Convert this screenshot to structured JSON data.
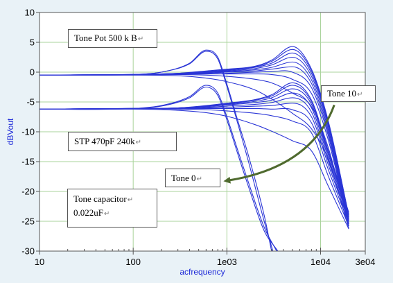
{
  "chart_data": {
    "type": "line",
    "xlabel": "acfrequency",
    "ylabel": "dBVout",
    "xscale": "log",
    "xlim": [
      10,
      30000
    ],
    "ylim": [
      -30,
      10
    ],
    "xticks": [
      "10",
      "100",
      "1e03",
      "1e04",
      "3e04"
    ],
    "yticks": [
      "10",
      "5",
      "0",
      "-5",
      "-10",
      "-15",
      "-20",
      "-25",
      "-30"
    ],
    "grid": true,
    "line_color": "#2a35d6",
    "series": [
      {
        "group": "upper",
        "x": [
          10,
          100,
          300,
          600,
          1000,
          2000,
          3000,
          5000,
          8000,
          12000,
          20000
        ],
        "y": [
          -0.5,
          -0.4,
          -0.2,
          0.2,
          0.5,
          1.0,
          2.0,
          4.3,
          0.5,
          -8,
          -24
        ]
      },
      {
        "group": "upper",
        "x": [
          10,
          100,
          300,
          600,
          1000,
          2000,
          3000,
          5000,
          8000,
          12000,
          20000
        ],
        "y": [
          -0.5,
          -0.4,
          -0.2,
          0.1,
          0.4,
          0.9,
          1.8,
          3.8,
          0.2,
          -8.3,
          -24
        ]
      },
      {
        "group": "upper",
        "x": [
          10,
          100,
          300,
          600,
          1000,
          2000,
          3000,
          5000,
          8000,
          12000,
          20000
        ],
        "y": [
          -0.5,
          -0.4,
          -0.2,
          0.0,
          0.3,
          0.8,
          1.5,
          3.2,
          -0.2,
          -8.6,
          -24.3
        ]
      },
      {
        "group": "upper",
        "x": [
          10,
          100,
          300,
          600,
          1000,
          2000,
          3000,
          5000,
          8000,
          12000,
          20000
        ],
        "y": [
          -0.5,
          -0.4,
          -0.3,
          -0.1,
          0.2,
          0.6,
          1.2,
          2.5,
          -0.7,
          -9,
          -24.5
        ]
      },
      {
        "group": "upper",
        "x": [
          10,
          100,
          300,
          600,
          1000,
          2000,
          3000,
          5000,
          8000,
          12000,
          20000
        ],
        "y": [
          -0.5,
          -0.4,
          -0.3,
          -0.1,
          0.1,
          0.4,
          0.8,
          1.7,
          -1.3,
          -9.5,
          -24.8
        ]
      },
      {
        "group": "upper",
        "x": [
          10,
          100,
          300,
          600,
          1000,
          2000,
          3000,
          5000,
          8000,
          12000,
          20000
        ],
        "y": [
          -0.5,
          -0.4,
          -0.3,
          -0.2,
          0.0,
          0.2,
          0.5,
          0.9,
          -1.9,
          -10,
          -25
        ]
      },
      {
        "group": "upper",
        "x": [
          10,
          100,
          300,
          600,
          1000,
          2000,
          3000,
          5000,
          8000,
          12000,
          20000
        ],
        "y": [
          -0.5,
          -0.4,
          -0.3,
          -0.3,
          -0.2,
          0.0,
          0.1,
          0.0,
          -2.6,
          -10.5,
          -25.3
        ]
      },
      {
        "group": "upper",
        "x": [
          10,
          100,
          300,
          600,
          1000,
          2000,
          3000,
          5000,
          8000,
          12000,
          20000
        ],
        "y": [
          -0.5,
          -0.4,
          -0.3,
          -0.3,
          -0.3,
          -0.3,
          -0.4,
          -1.2,
          -3.6,
          -11.2,
          -25.5
        ]
      },
      {
        "group": "upper",
        "x": [
          10,
          100,
          300,
          600,
          1000,
          2000,
          3000,
          5000,
          8000,
          12000,
          20000
        ],
        "y": [
          -0.5,
          -0.4,
          -0.4,
          -0.5,
          -0.7,
          -1.2,
          -1.8,
          -3.5,
          -5.8,
          -12.5,
          -25.8
        ]
      },
      {
        "group": "upper",
        "x": [
          10,
          100,
          300,
          600,
          1000,
          2000,
          3000,
          5000,
          8000,
          12000,
          20000
        ],
        "y": [
          -0.5,
          -0.5,
          -0.6,
          -1.0,
          -1.6,
          -3.0,
          -4.5,
          -6.9,
          -9.5,
          -14.5,
          -26.2
        ]
      },
      {
        "group": "upper-peak",
        "x": [
          10,
          100,
          200,
          400,
          600,
          800,
          1000,
          1300,
          1700,
          2500,
          3000
        ],
        "y": [
          -0.5,
          -0.4,
          0.0,
          1.5,
          3.7,
          2.5,
          -2,
          -8,
          -14,
          -24,
          -30
        ]
      },
      {
        "group": "upper-peak",
        "x": [
          10,
          100,
          200,
          400,
          600,
          800,
          1000,
          1300,
          1700,
          2500,
          3100
        ],
        "y": [
          -0.5,
          -0.4,
          0.0,
          1.4,
          3.5,
          2.2,
          -2.4,
          -8.5,
          -15,
          -25,
          -30
        ]
      },
      {
        "group": "lower",
        "x": [
          10,
          100,
          300,
          600,
          1000,
          2000,
          3000,
          5000,
          8000,
          12000,
          20000
        ],
        "y": [
          -6.2,
          -6.1,
          -6.0,
          -5.6,
          -5.2,
          -4.6,
          -3.8,
          -1.8,
          -4.7,
          -13,
          -23.5
        ]
      },
      {
        "group": "lower",
        "x": [
          10,
          100,
          300,
          600,
          1000,
          2000,
          3000,
          5000,
          8000,
          12000,
          20000
        ],
        "y": [
          -6.2,
          -6.1,
          -6.0,
          -5.7,
          -5.3,
          -4.7,
          -4.0,
          -2.2,
          -5.0,
          -13.3,
          -23.7
        ]
      },
      {
        "group": "lower",
        "x": [
          10,
          100,
          300,
          600,
          1000,
          2000,
          3000,
          5000,
          8000,
          12000,
          20000
        ],
        "y": [
          -6.2,
          -6.1,
          -6.0,
          -5.7,
          -5.4,
          -4.9,
          -4.3,
          -2.8,
          -5.4,
          -13.7,
          -24
        ]
      },
      {
        "group": "lower",
        "x": [
          10,
          100,
          300,
          600,
          1000,
          2000,
          3000,
          5000,
          8000,
          12000,
          20000
        ],
        "y": [
          -6.2,
          -6.1,
          -6.0,
          -5.8,
          -5.5,
          -5.1,
          -4.7,
          -3.5,
          -6.0,
          -14.2,
          -24.3
        ]
      },
      {
        "group": "lower",
        "x": [
          10,
          100,
          300,
          600,
          1000,
          2000,
          3000,
          5000,
          8000,
          12000,
          20000
        ],
        "y": [
          -6.2,
          -6.1,
          -6.1,
          -5.9,
          -5.7,
          -5.4,
          -5.1,
          -4.3,
          -6.7,
          -14.8,
          -24.6
        ]
      },
      {
        "group": "lower",
        "x": [
          10,
          100,
          300,
          600,
          1000,
          2000,
          3000,
          5000,
          8000,
          12000,
          20000
        ],
        "y": [
          -6.2,
          -6.1,
          -6.1,
          -6.0,
          -5.9,
          -5.7,
          -5.6,
          -5.2,
          -7.5,
          -15.4,
          -25
        ]
      },
      {
        "group": "lower",
        "x": [
          10,
          100,
          300,
          600,
          1000,
          2000,
          3000,
          5000,
          8000,
          12000,
          20000
        ],
        "y": [
          -6.2,
          -6.1,
          -6.1,
          -6.1,
          -6.1,
          -6.1,
          -6.2,
          -6.3,
          -8.5,
          -16.2,
          -25.4
        ]
      },
      {
        "group": "lower",
        "x": [
          10,
          100,
          300,
          600,
          1000,
          2000,
          3000,
          5000,
          8000,
          12000,
          20000
        ],
        "y": [
          -6.2,
          -6.1,
          -6.2,
          -6.3,
          -6.5,
          -6.9,
          -7.3,
          -8.2,
          -10.2,
          -17.3,
          -25.8
        ]
      },
      {
        "group": "lower",
        "x": [
          10,
          100,
          300,
          600,
          1000,
          2000,
          3000,
          5000,
          8000,
          12000,
          20000
        ],
        "y": [
          -6.2,
          -6.2,
          -6.4,
          -6.8,
          -7.4,
          -8.8,
          -9.9,
          -11.5,
          -13.2,
          -19,
          -26.3
        ]
      },
      {
        "group": "lower-peak",
        "x": [
          10,
          100,
          200,
          400,
          600,
          800,
          1000,
          1300,
          1700,
          2500,
          3400
        ],
        "y": [
          -6.2,
          -6.1,
          -5.6,
          -4.1,
          -2.2,
          -3.5,
          -7.5,
          -13,
          -18.5,
          -26,
          -30
        ]
      },
      {
        "group": "lower-peak",
        "x": [
          10,
          100,
          200,
          400,
          600,
          800,
          1000,
          1300,
          1700,
          2500,
          3500
        ],
        "y": [
          -6.2,
          -6.1,
          -5.7,
          -4.3,
          -2.5,
          -3.9,
          -8,
          -13.6,
          -19.2,
          -26.6,
          -30
        ]
      }
    ],
    "annotations": [
      {
        "lines": [
          "Tone Pot 500 k B"
        ]
      },
      {
        "lines": [
          "STP 470pF 240k"
        ]
      },
      {
        "lines": [
          "Tone capacitor",
          "0.022uF"
        ]
      },
      {
        "lines": [
          "Tone 10"
        ]
      },
      {
        "lines": [
          "Tone 0"
        ]
      }
    ],
    "return_mark": "↵",
    "arrow_color": "#4f6a2e",
    "arrow": {
      "from": {
        "x": 14000,
        "y": -5.5
      },
      "via": {
        "x": 8000,
        "y": -16
      },
      "to": {
        "x": 1000,
        "y": -18.2
      }
    }
  }
}
